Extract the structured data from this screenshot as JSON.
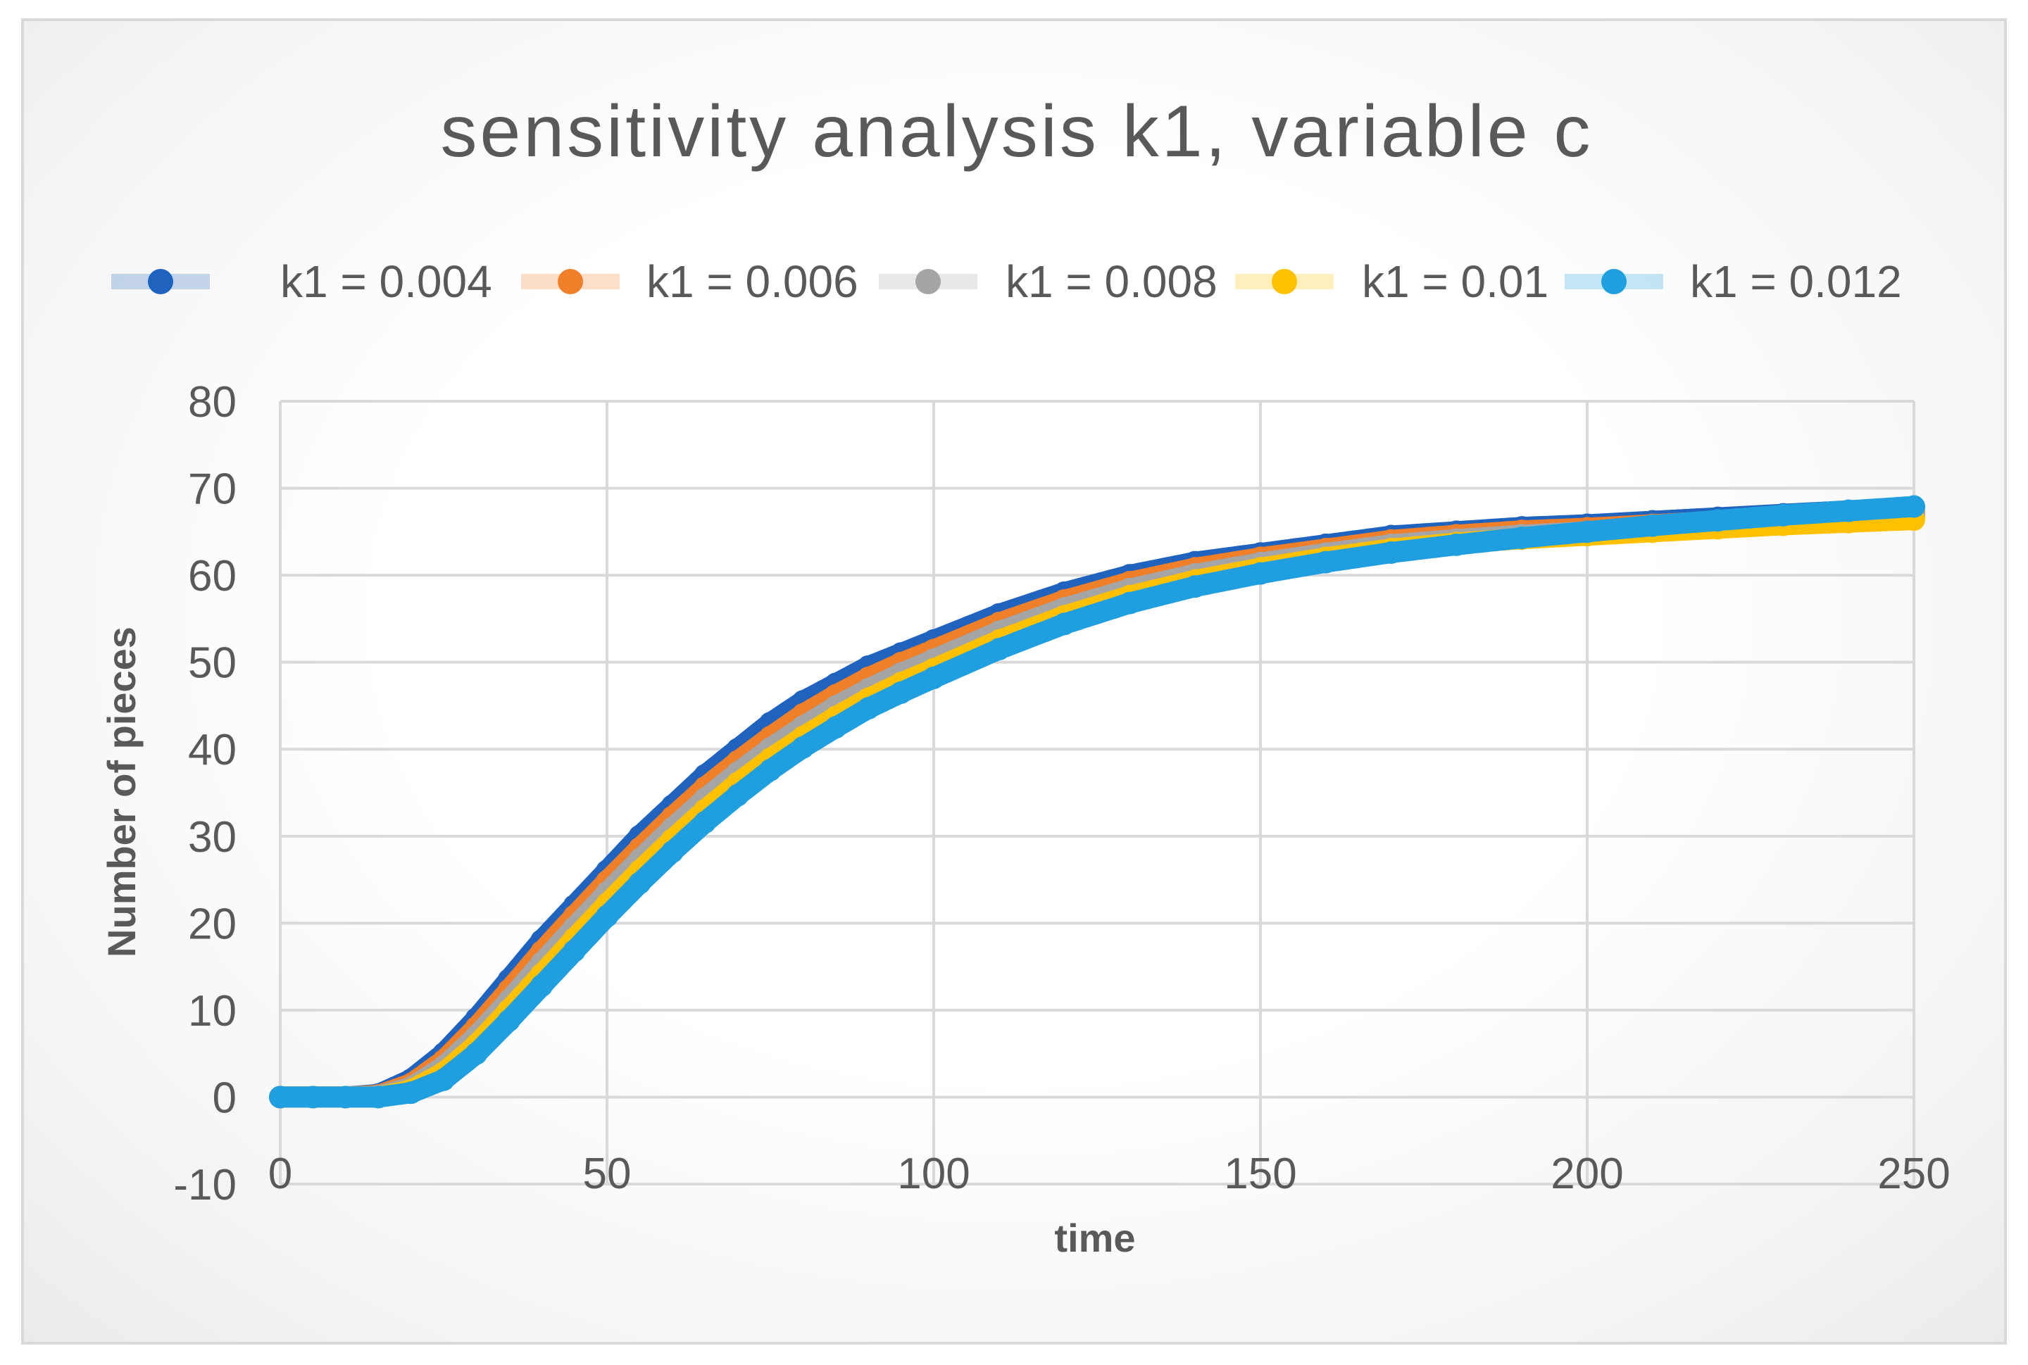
{
  "chart_data": {
    "type": "scatter",
    "title": "sensitivity  analysis  k1, variable  c",
    "xlabel": "time",
    "ylabel": "Number of pieces",
    "xlim": [
      0,
      250
    ],
    "ylim": [
      -10,
      80
    ],
    "x_ticks": [
      0,
      50,
      100,
      150,
      200,
      250
    ],
    "y_ticks": [
      -10,
      0,
      10,
      20,
      30,
      40,
      50,
      60,
      70,
      80
    ],
    "x_tick_labels": [
      "0",
      "50",
      "100",
      "150",
      "200",
      "250"
    ],
    "y_tick_labels": [
      "-10",
      "0",
      "10",
      "20",
      "30",
      "40",
      "50",
      "60",
      "70",
      "80"
    ],
    "grid": true,
    "legend_position": "top",
    "x": [
      0,
      5,
      10,
      15,
      20,
      25,
      30,
      35,
      40,
      45,
      50,
      55,
      60,
      65,
      70,
      75,
      80,
      85,
      90,
      95,
      100,
      110,
      120,
      130,
      140,
      150,
      160,
      170,
      180,
      190,
      200,
      210,
      220,
      230,
      240,
      250
    ],
    "series": [
      {
        "name": "k1 =  0.004",
        "color": "#1f63bf",
        "values": [
          0,
          0,
          0,
          0.3,
          2,
          5,
          9,
          13.5,
          18,
          22,
          26,
          30,
          33.5,
          37,
          40,
          43,
          45.5,
          47.5,
          49.5,
          51,
          52.5,
          55.5,
          58,
          60,
          61.5,
          62.5,
          63.5,
          64.5,
          65,
          65.5,
          65.8,
          66.2,
          66.6,
          67,
          67.4,
          67.8
        ]
      },
      {
        "name": "k1 = 0.006",
        "color": "#f07f2a",
        "values": [
          0,
          0,
          0,
          0.2,
          1.5,
          4.2,
          8,
          12.3,
          16.7,
          20.8,
          24.8,
          28.6,
          32.2,
          35.6,
          38.6,
          41.4,
          44,
          46.2,
          48.2,
          49.9,
          51.4,
          54.5,
          57.1,
          59.2,
          60.8,
          62,
          63,
          64,
          64.6,
          65.1,
          65.4,
          65.8,
          66.2,
          66.6,
          66.9,
          67.2
        ]
      },
      {
        "name": "k1 = 0.008",
        "color": "#a5a5a5",
        "values": [
          0,
          0,
          0,
          0.1,
          1.1,
          3.5,
          7,
          11.1,
          15.4,
          19.5,
          23.5,
          27.3,
          30.9,
          34.3,
          37.3,
          40.1,
          42.6,
          44.9,
          46.9,
          48.7,
          50.3,
          53.5,
          56.2,
          58.4,
          60.1,
          61.4,
          62.5,
          63.5,
          64.1,
          64.6,
          65,
          65.4,
          65.8,
          66.2,
          66.5,
          66.8
        ]
      },
      {
        "name": "k1 = 0.01",
        "color": "#ffc000",
        "values": [
          0,
          0,
          0,
          0,
          0.8,
          2.8,
          6,
          10,
          14.1,
          18.2,
          22.2,
          26,
          29.6,
          33,
          36.1,
          38.9,
          41.4,
          43.7,
          45.8,
          47.6,
          49.2,
          52.5,
          55.3,
          57.6,
          59.4,
          60.8,
          62,
          63,
          63.7,
          64.2,
          64.6,
          65,
          65.4,
          65.8,
          66.1,
          66.4
        ]
      },
      {
        "name": "k1 =  0.012",
        "color": "#1f9ee0",
        "values": [
          0,
          0,
          0,
          0,
          0.5,
          2,
          5,
          8.8,
          12.8,
          16.8,
          20.8,
          24.6,
          28.2,
          31.6,
          34.7,
          37.6,
          40.2,
          42.5,
          44.7,
          46.5,
          48.2,
          51.5,
          54.4,
          56.8,
          58.7,
          60.2,
          61.5,
          62.6,
          63.5,
          64.3,
          65,
          65.7,
          66.3,
          66.9,
          67.4,
          67.9
        ]
      }
    ]
  }
}
